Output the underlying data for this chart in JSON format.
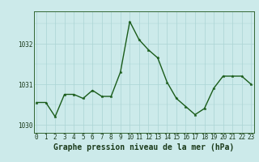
{
  "x": [
    0,
    1,
    2,
    3,
    4,
    5,
    6,
    7,
    8,
    9,
    10,
    11,
    12,
    13,
    14,
    15,
    16,
    17,
    18,
    19,
    20,
    21,
    22,
    23
  ],
  "y": [
    1030.55,
    1030.55,
    1030.2,
    1030.75,
    1030.75,
    1030.65,
    1030.85,
    1030.7,
    1030.7,
    1031.3,
    1032.55,
    1032.1,
    1031.85,
    1031.65,
    1031.05,
    1030.65,
    1030.45,
    1030.25,
    1030.4,
    1030.9,
    1031.2,
    1031.2,
    1031.2,
    1031.0
  ],
  "ylim": [
    1029.8,
    1032.8
  ],
  "yticks": [
    1030,
    1031,
    1032
  ],
  "xticks": [
    0,
    1,
    2,
    3,
    4,
    5,
    6,
    7,
    8,
    9,
    10,
    11,
    12,
    13,
    14,
    15,
    16,
    17,
    18,
    19,
    20,
    21,
    22,
    23
  ],
  "xlabel": "Graphe pression niveau de la mer (hPa)",
  "line_color": "#1a5c1a",
  "marker": "*",
  "marker_size": 2.5,
  "bg_color": "#cceaea",
  "grid_color": "#aad4d4",
  "axis_label_color": "#1a3a1a",
  "tick_label_color": "#1a3a1a",
  "tick_fontsize": 5.5,
  "xlabel_fontsize": 7,
  "line_width": 1.0,
  "xlim": [
    -0.3,
    23.3
  ]
}
